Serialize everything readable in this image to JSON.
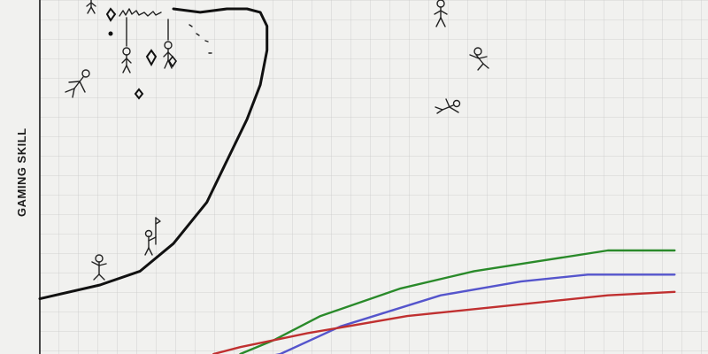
{
  "chart_data": {
    "type": "line",
    "title": "",
    "xlabel": "",
    "ylabel": "GAMING SKILL",
    "grid": true,
    "xlim": [
      0,
      100
    ],
    "ylim": [
      0,
      100
    ],
    "series": [
      {
        "color": "#111111",
        "x": [
          0,
          9,
          15,
          20,
          25,
          28,
          31,
          33,
          34,
          34,
          33,
          31,
          28,
          24,
          20
        ],
        "y": [
          16,
          20,
          24,
          32,
          44,
          56,
          68,
          78,
          88,
          95,
          99,
          100,
          100,
          99,
          100
        ]
      },
      {
        "color": "#2a8a2a",
        "x": [
          30,
          35,
          42,
          54,
          65,
          75,
          85,
          95
        ],
        "y": [
          0,
          4,
          11,
          19,
          24,
          27,
          30,
          30
        ]
      },
      {
        "color": "#5555cc",
        "x": [
          31,
          36,
          45,
          60,
          72,
          82,
          95
        ],
        "y": [
          -2,
          0,
          8,
          17,
          21,
          23,
          23
        ]
      },
      {
        "color": "#c03030",
        "x": [
          26,
          30,
          40,
          55,
          70,
          85,
          95
        ],
        "y": [
          0,
          2,
          6,
          11,
          14,
          17,
          18
        ]
      }
    ]
  },
  "decorations": {
    "stick_figure_icon_count": 9,
    "diamond_icon_count": 4
  }
}
